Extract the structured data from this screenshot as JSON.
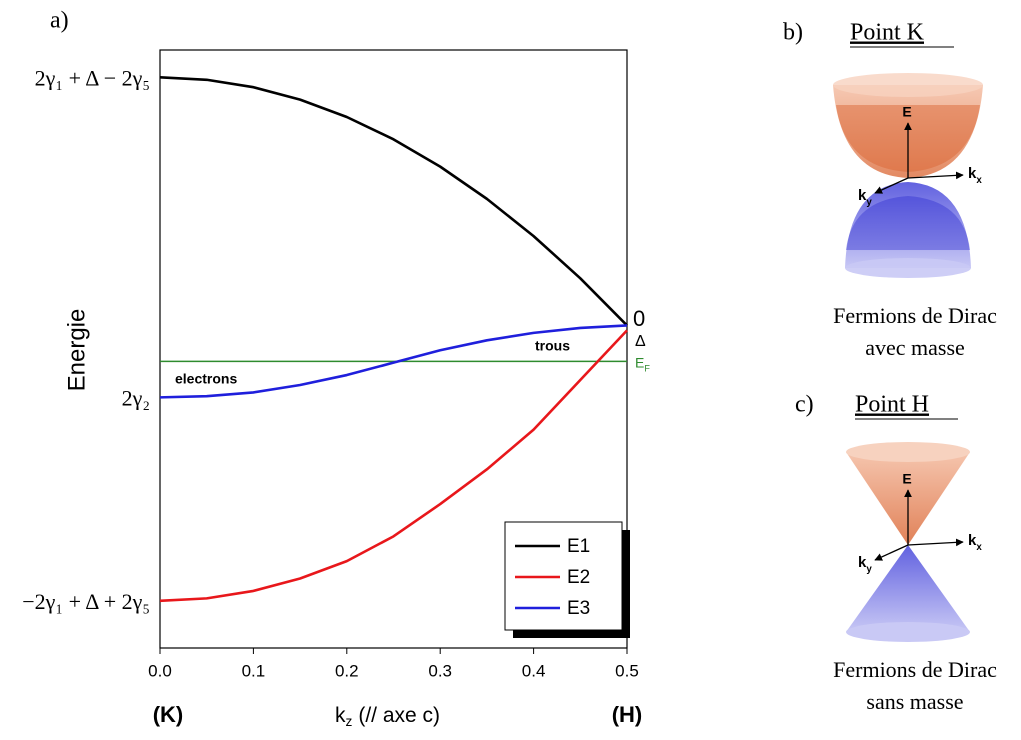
{
  "chart_data": {
    "type": "line",
    "panel_label": "a)",
    "ylabel": "Energie",
    "xlabel": {
      "symbol": "k",
      "subscript": "z",
      "text": "(// axe c)"
    },
    "x_end_labels": [
      "(K)",
      "(H)"
    ],
    "x": [
      0,
      0.05,
      0.1,
      0.15,
      0.2,
      0.25,
      0.3,
      0.35,
      0.4,
      0.45,
      0.5
    ],
    "series": [
      {
        "name": "E1",
        "color": "#000000",
        "values": [
          1.0,
          0.99,
          0.96,
          0.91,
          0.84,
          0.75,
          0.64,
          0.51,
          0.36,
          0.19,
          0.0
        ]
      },
      {
        "name": "E2",
        "color": "#e8171b",
        "values": [
          -1.11,
          -1.1,
          -1.07,
          -1.02,
          -0.95,
          -0.85,
          -0.72,
          -0.58,
          -0.42,
          -0.22,
          -0.02
        ]
      },
      {
        "name": "E3",
        "color": "#1f1fdc",
        "values": [
          -0.29,
          -0.285,
          -0.27,
          -0.24,
          -0.2,
          -0.15,
          -0.1,
          -0.06,
          -0.03,
          -0.01,
          0.0
        ]
      }
    ],
    "fermi_level": {
      "value": -0.145,
      "color": "#2e8b2e",
      "symbol": "E",
      "subscript": "F"
    },
    "annotations": [
      "electrons",
      "trous",
      "0",
      "Δ"
    ],
    "xlim": [
      0,
      0.5
    ],
    "xticks": [
      {
        "value": 0,
        "label": "0.0"
      },
      0.1,
      0.2,
      0.3,
      0.4,
      0.5
    ],
    "ylim": [
      -1.3,
      1.11
    ],
    "yticks": [
      {
        "value": -1.11,
        "label": "−2γ₁ + Δ + 2γ₅"
      },
      {
        "value": -0.29,
        "label": "2γ₂"
      },
      {
        "value": 1.0,
        "label": "2γ₁ + Δ − 2γ₅"
      }
    ],
    "legend": "lower right"
  },
  "panels": [
    {
      "label": "b)",
      "title": "Point K",
      "axes": {
        "energy": "E",
        "kx": {
          "symbol": "k",
          "subscript": "x"
        },
        "ky": {
          "symbol": "k",
          "subscript": "y"
        }
      },
      "caption": [
        "Fermions de Dirac",
        "avec masse"
      ]
    },
    {
      "label": "c)",
      "title": "Point H",
      "axes": {
        "energy": "E",
        "kx": {
          "symbol": "k",
          "subscript": "x"
        },
        "ky": {
          "symbol": "k",
          "subscript": "y"
        }
      },
      "caption": [
        "Fermions de Dirac",
        "sans masse"
      ]
    }
  ]
}
